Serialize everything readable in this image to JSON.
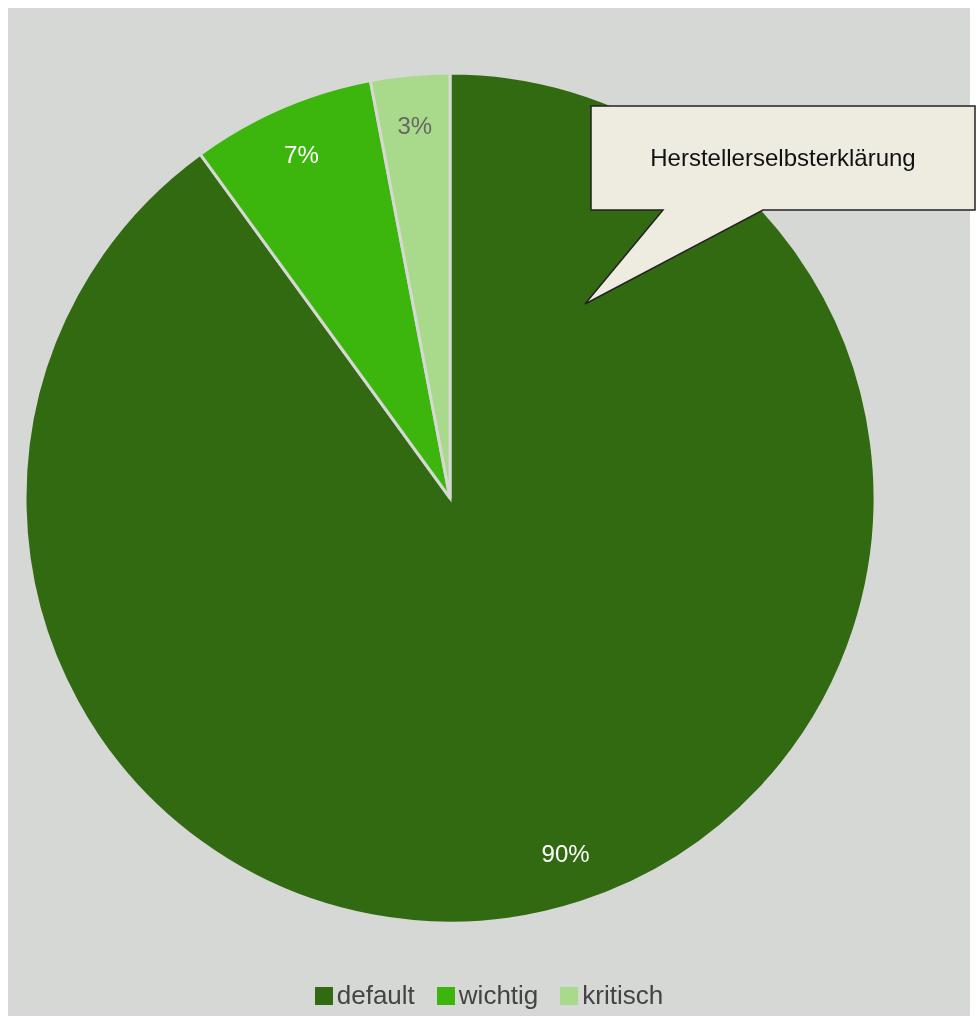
{
  "chart_data": {
    "type": "pie",
    "categories": [
      "default",
      "wichtig",
      "kritisch"
    ],
    "values": [
      90,
      7,
      3
    ],
    "colors": [
      "#326a12",
      "#3cb50c",
      "#a9da8c"
    ],
    "value_labels": [
      "90%",
      "7%",
      "3%"
    ],
    "legend": "bottom",
    "annotations": [
      "Herstellerselbsterklärung"
    ]
  }
}
